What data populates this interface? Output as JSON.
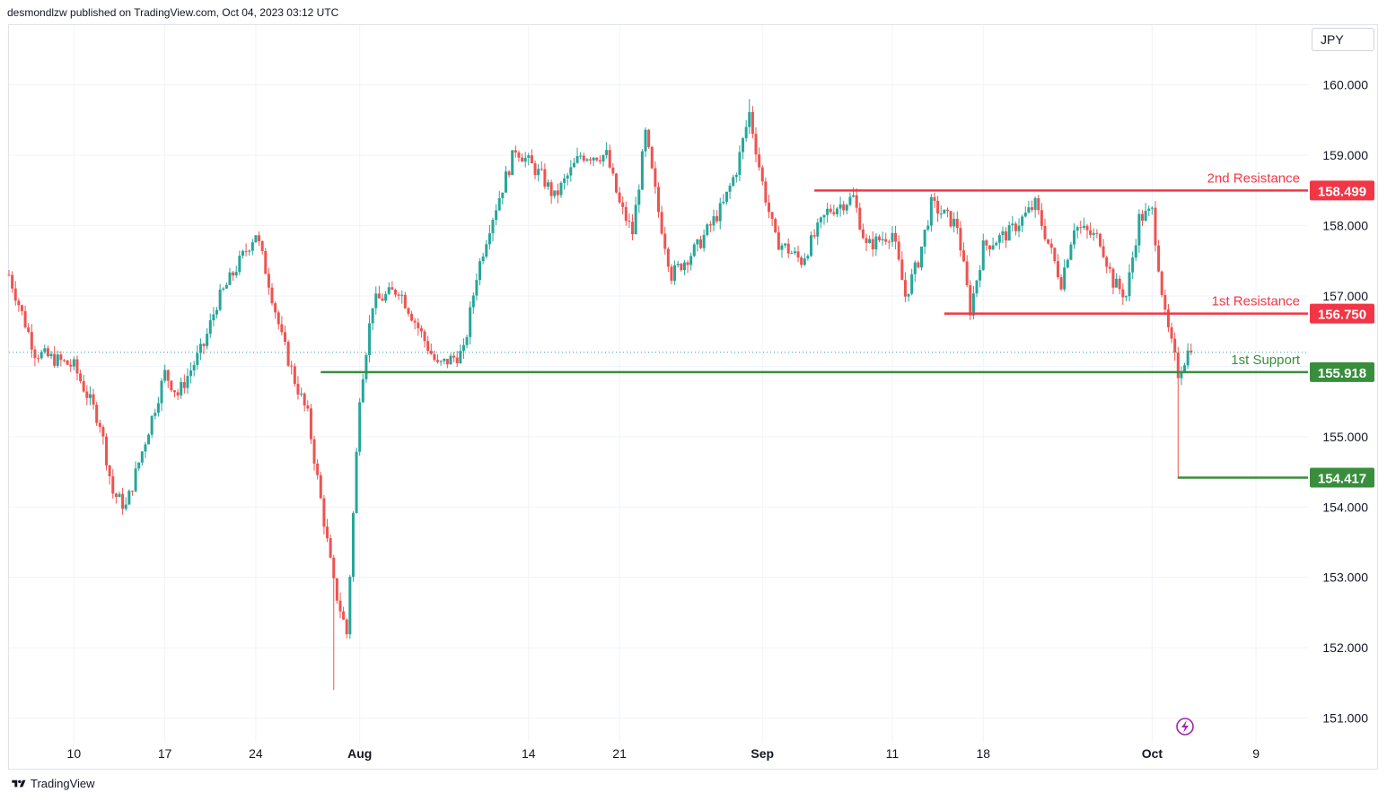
{
  "header": {
    "published_text": "desmondlzw published on TradingView.com, Oct 04, 2023 03:12 UTC"
  },
  "currency_label": "JPY",
  "footer": {
    "brand": "TradingView"
  },
  "colors": {
    "up": "#26a69a",
    "down": "#ef5350",
    "resistance": "#f23645",
    "support": "#388e3c",
    "grid": "#f0f3fa"
  },
  "chart_data": {
    "type": "candlestick",
    "title": "",
    "ylabel": "",
    "ylim": [
      150.65,
      160.85
    ],
    "y_ticks": [
      151.0,
      152.0,
      153.0,
      154.0,
      155.0,
      156.0,
      157.0,
      158.0,
      159.0,
      160.0
    ],
    "y_tick_labels": [
      "151.000",
      "152.000",
      "153.000",
      "154.000",
      "155.000",
      "156.000",
      "157.000",
      "158.000",
      "159.000",
      "160.000"
    ],
    "x_ticks": [
      {
        "label": "10",
        "date": "2023-07-10",
        "bold": false
      },
      {
        "label": "17",
        "date": "2023-07-17",
        "bold": false
      },
      {
        "label": "24",
        "date": "2023-07-24",
        "bold": false
      },
      {
        "label": "Aug",
        "date": "2023-08-01",
        "bold": true
      },
      {
        "label": "14",
        "date": "2023-08-14",
        "bold": false
      },
      {
        "label": "21",
        "date": "2023-08-21",
        "bold": false
      },
      {
        "label": "Sep",
        "date": "2023-09-01",
        "bold": true
      },
      {
        "label": "11",
        "date": "2023-09-11",
        "bold": false
      },
      {
        "label": "18",
        "date": "2023-09-18",
        "bold": false
      },
      {
        "label": "Oct",
        "date": "2023-10-01",
        "bold": true
      },
      {
        "label": "9",
        "date": "2023-10-09",
        "bold": false
      }
    ],
    "x_range": [
      "2023-07-05",
      "2023-10-13"
    ],
    "price_path": [
      [
        "2023-07-05",
        157.3
      ],
      [
        "2023-07-07",
        156.2
      ],
      [
        "2023-07-10",
        156.0
      ],
      [
        "2023-07-12",
        155.2
      ],
      [
        "2023-07-13",
        154.2
      ],
      [
        "2023-07-14",
        154.0
      ],
      [
        "2023-07-17",
        155.9
      ],
      [
        "2023-07-18",
        155.6
      ],
      [
        "2023-07-20",
        156.3
      ],
      [
        "2023-07-21",
        156.9
      ],
      [
        "2023-07-24",
        157.9
      ],
      [
        "2023-07-25",
        157.2
      ],
      [
        "2023-07-26",
        156.4
      ],
      [
        "2023-07-27",
        155.8
      ],
      [
        "2023-07-28",
        155.3
      ],
      [
        "2023-07-30",
        152.9
      ],
      [
        "2023-07-31",
        152.2
      ],
      [
        "2023-08-01",
        155.6
      ],
      [
        "2023-08-02",
        156.9
      ],
      [
        "2023-08-04",
        157.1
      ],
      [
        "2023-08-07",
        156.0
      ],
      [
        "2023-08-09",
        156.2
      ],
      [
        "2023-08-10",
        157.3
      ],
      [
        "2023-08-11",
        158.0
      ],
      [
        "2023-08-13",
        159.1
      ],
      [
        "2023-08-15",
        158.7
      ],
      [
        "2023-08-16",
        158.4
      ],
      [
        "2023-08-18",
        159.0
      ],
      [
        "2023-08-20",
        159.0
      ],
      [
        "2023-08-21",
        158.3
      ],
      [
        "2023-08-22",
        157.9
      ],
      [
        "2023-08-23",
        159.3
      ],
      [
        "2023-08-24",
        158.2
      ],
      [
        "2023-08-25",
        157.3
      ],
      [
        "2023-08-27",
        157.7
      ],
      [
        "2023-08-29",
        158.3
      ],
      [
        "2023-08-30",
        158.8
      ],
      [
        "2023-08-31",
        159.6
      ],
      [
        "2023-09-01",
        158.6
      ],
      [
        "2023-09-02",
        157.8
      ],
      [
        "2023-09-04",
        157.5
      ],
      [
        "2023-09-06",
        158.2
      ],
      [
        "2023-09-08",
        158.4
      ],
      [
        "2023-09-09",
        157.7
      ],
      [
        "2023-09-11",
        157.9
      ],
      [
        "2023-09-12",
        157.0
      ],
      [
        "2023-09-13",
        157.5
      ],
      [
        "2023-09-14",
        158.3
      ],
      [
        "2023-09-16",
        158.0
      ],
      [
        "2023-09-17",
        156.8
      ],
      [
        "2023-09-18",
        157.7
      ],
      [
        "2023-09-20",
        157.9
      ],
      [
        "2023-09-22",
        158.3
      ],
      [
        "2023-09-24",
        157.2
      ],
      [
        "2023-09-25",
        158.0
      ],
      [
        "2023-09-27",
        157.8
      ],
      [
        "2023-09-28",
        157.2
      ],
      [
        "2023-09-29",
        157.0
      ],
      [
        "2023-09-30",
        158.1
      ],
      [
        "2023-10-01",
        158.2
      ],
      [
        "2023-10-02",
        156.7
      ],
      [
        "2023-10-03",
        155.9
      ],
      [
        "2023-10-04",
        156.3
      ]
    ],
    "extremes": [
      {
        "date": "2023-07-30",
        "low": 151.4
      },
      {
        "date": "2023-08-31",
        "high": 159.8
      },
      {
        "date": "2023-10-03",
        "low": 154.4
      }
    ],
    "last_price": 156.2,
    "levels": [
      {
        "name": "2nd Resistance",
        "value": 158.499,
        "value_label": "158.499",
        "kind": "resistance",
        "from": "2023-09-05"
      },
      {
        "name": "1st Resistance",
        "value": 156.75,
        "value_label": "156.750",
        "kind": "resistance",
        "from": "2023-09-15"
      },
      {
        "name": "1st Support",
        "value": 155.918,
        "value_label": "155.918",
        "kind": "support",
        "from": "2023-07-29"
      },
      {
        "name": "",
        "value": 154.417,
        "value_label": "154.417",
        "kind": "support",
        "from": "2023-10-03"
      }
    ],
    "grid": true,
    "legend": "none"
  }
}
